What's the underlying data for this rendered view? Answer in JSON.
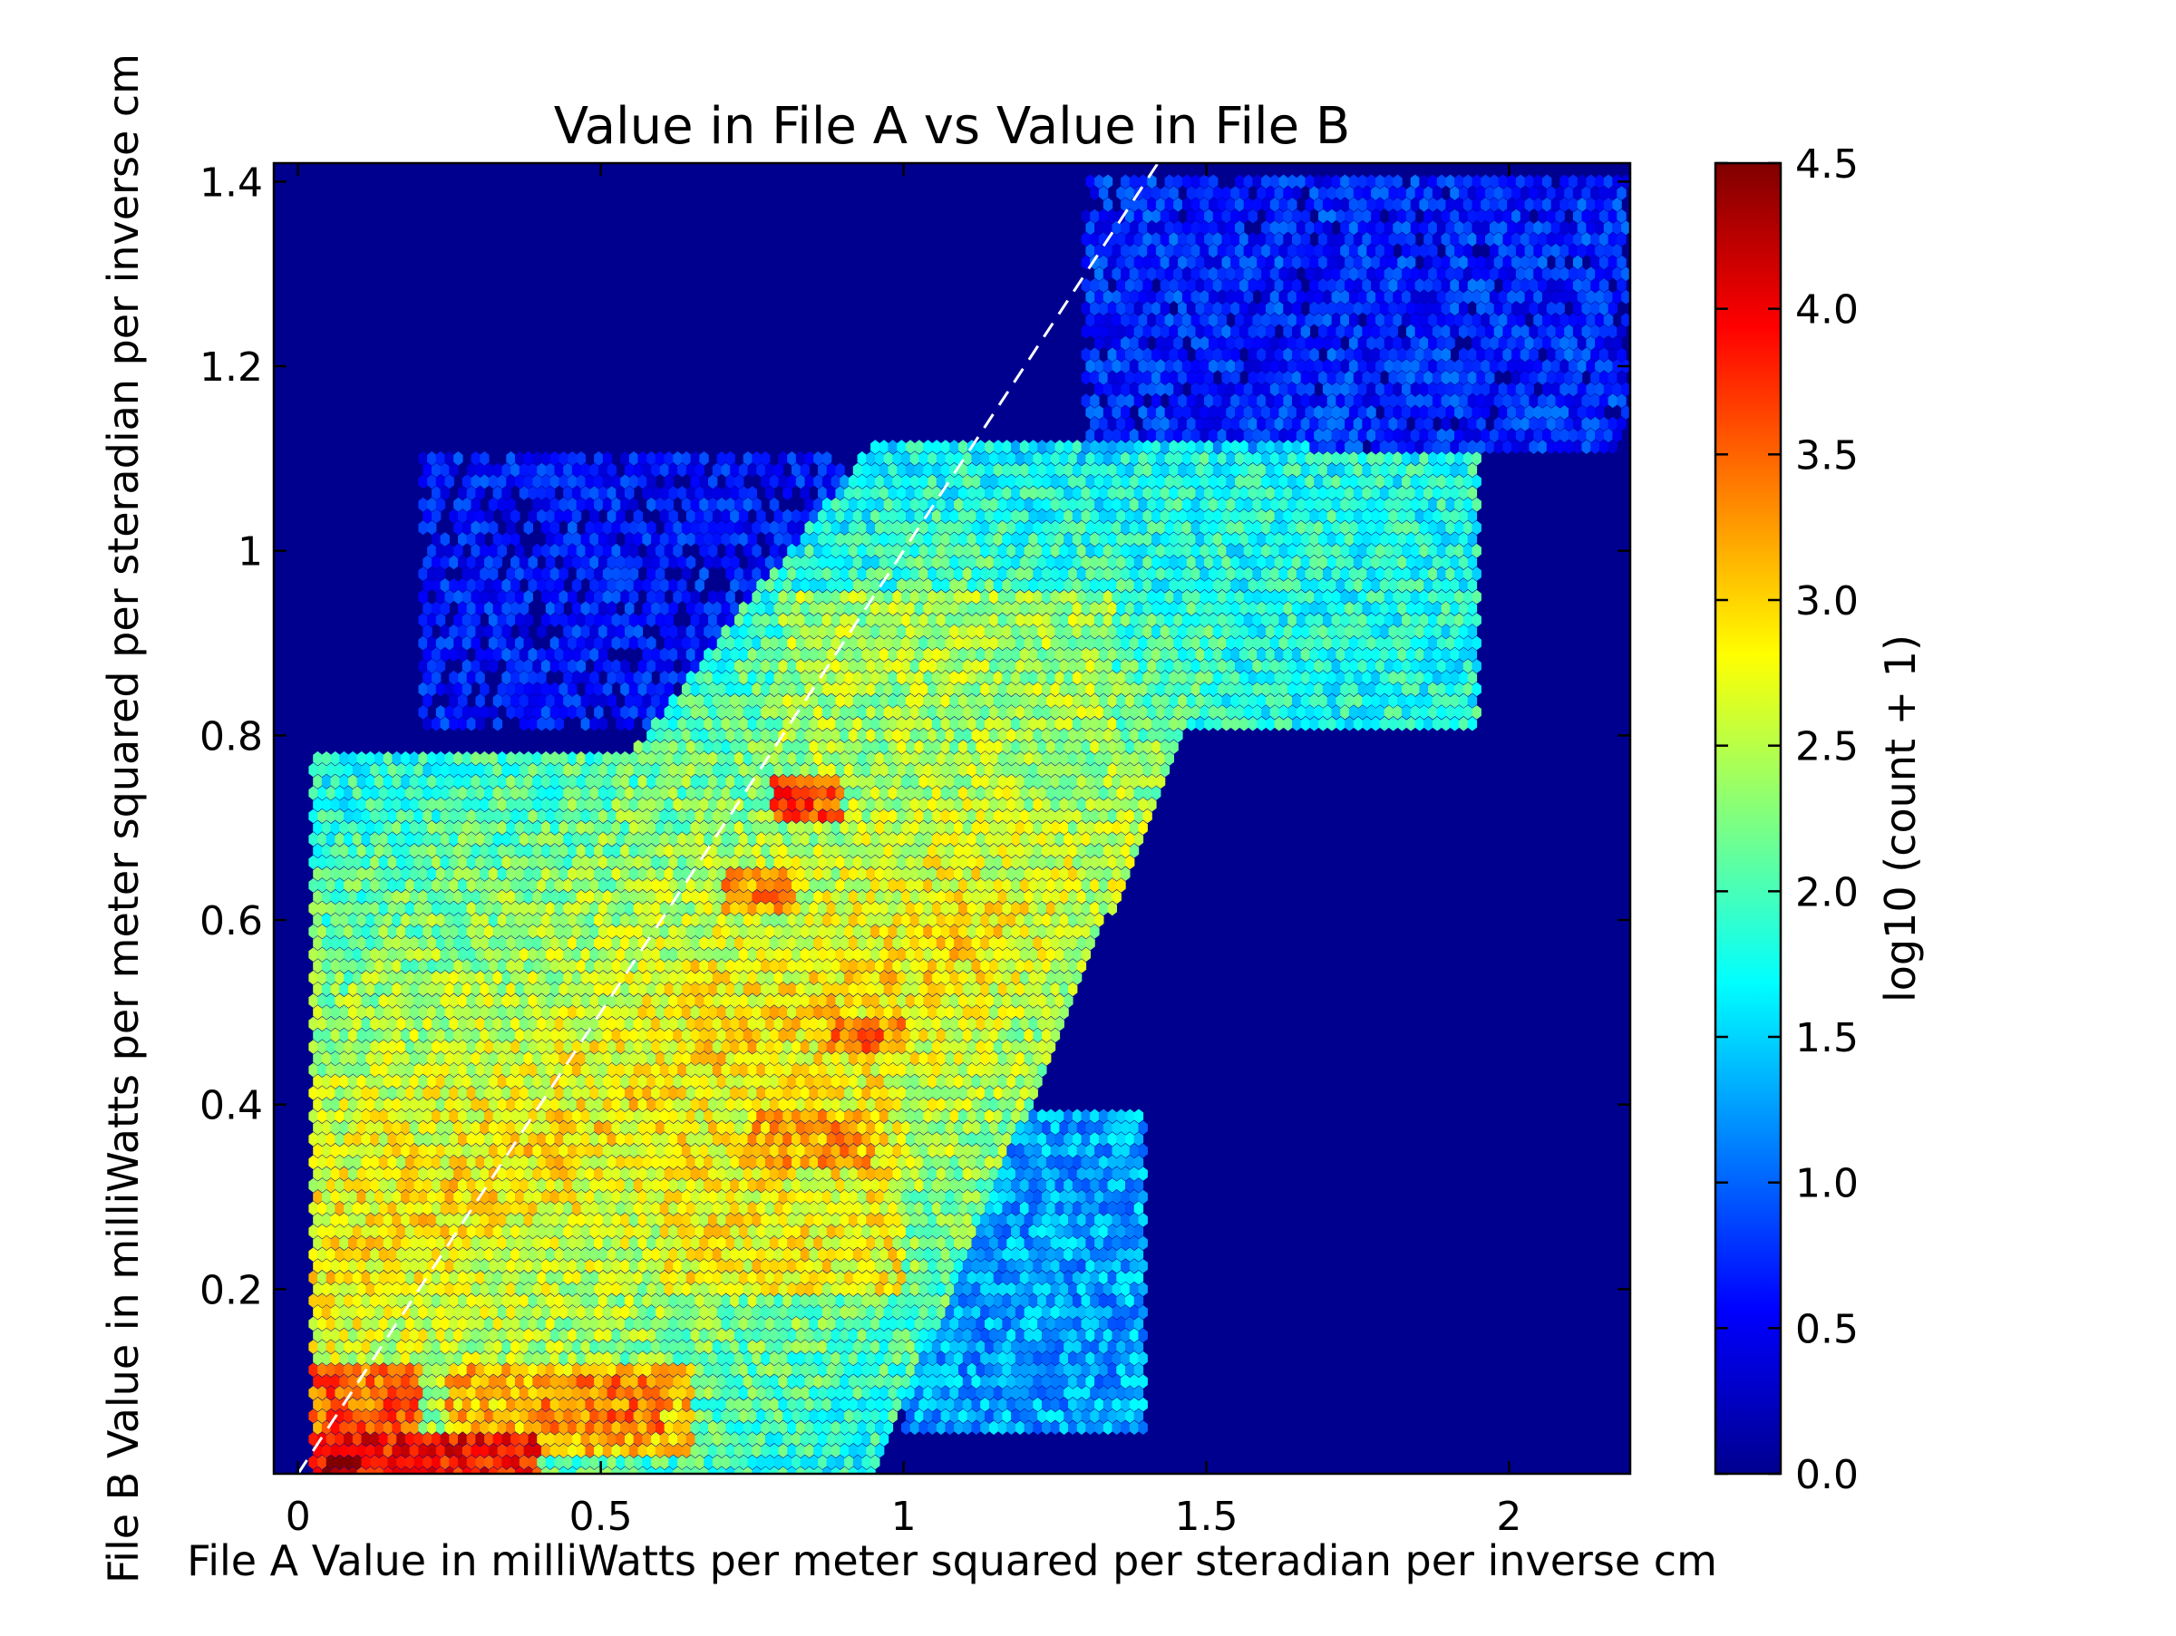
{
  "chart_data": {
    "type": "heatmap",
    "subtype": "hexbin",
    "title": "Value in File A vs Value in File B",
    "xlabel": "File A Value in milliWatts per meter squared per steradian per inverse cm",
    "ylabel": "File B Value in milliWatts per meter squared per steradian per inverse cm",
    "xlim": [
      -0.04,
      2.2
    ],
    "ylim": [
      0.0,
      1.42
    ],
    "x_ticks": [
      0,
      0.5,
      1,
      1.5,
      2
    ],
    "x_tick_labels": [
      "0",
      "0.5",
      "1",
      "1.5",
      "2"
    ],
    "y_ticks": [
      0.2,
      0.4,
      0.6,
      0.8,
      1.0,
      1.2,
      1.4
    ],
    "y_tick_labels": [
      "0.2",
      "0.4",
      "0.6",
      "0.8",
      "1",
      "1.2",
      "1.4"
    ],
    "background_color": "#00008f",
    "colormap": "jet",
    "colorbar": {
      "label": "log10 (count + 1)",
      "range": [
        0.0,
        4.5
      ],
      "ticks": [
        0.0,
        0.5,
        1.0,
        1.5,
        2.0,
        2.5,
        3.0,
        3.5,
        4.0,
        4.5
      ],
      "tick_labels": [
        "0.0",
        "0.5",
        "1.0",
        "1.5",
        "2.0",
        "2.5",
        "3.0",
        "3.5",
        "4.0",
        "4.5"
      ]
    },
    "reference_line": {
      "style": "dashed",
      "color": "#ffffff",
      "x": [
        0.0,
        1.42
      ],
      "y": [
        0.0,
        1.42
      ]
    },
    "density_regions": [
      {
        "x": [
          0.04,
          0.1
        ],
        "y": [
          0.0,
          0.02
        ],
        "value": 4.5
      },
      {
        "x": [
          0.02,
          0.4
        ],
        "y": [
          0.0,
          0.04
        ],
        "value": 3.9
      },
      {
        "x": [
          0.02,
          0.2
        ],
        "y": [
          0.03,
          0.12
        ],
        "value": 3.5
      },
      {
        "x": [
          0.25,
          0.65
        ],
        "y": [
          0.02,
          0.12
        ],
        "value": 3.1
      },
      {
        "x": [
          0.4,
          0.6
        ],
        "y": [
          0.05,
          0.1
        ],
        "value": 3.4
      },
      {
        "x": [
          0.78,
          0.9
        ],
        "y": [
          0.7,
          0.75
        ],
        "value": 3.6
      },
      {
        "x": [
          0.7,
          0.82
        ],
        "y": [
          0.61,
          0.65
        ],
        "value": 3.3
      },
      {
        "x": [
          0.88,
          1.0
        ],
        "y": [
          0.46,
          0.5
        ],
        "value": 3.4
      },
      {
        "x": [
          0.75,
          0.95
        ],
        "y": [
          0.33,
          0.4
        ],
        "value": 3.2
      },
      {
        "x": [
          0.6,
          1.0
        ],
        "y": [
          0.2,
          0.55
        ],
        "value": 2.8
      },
      {
        "x": [
          0.8,
          1.35
        ],
        "y": [
          0.7,
          0.95
        ],
        "value": 2.4
      },
      {
        "x": [
          1.35,
          1.95
        ],
        "y": [
          0.8,
          1.1
        ],
        "value": 1.8
      },
      {
        "x": [
          0.02,
          0.3
        ],
        "y": [
          0.55,
          0.7
        ],
        "value": 1.4
      },
      {
        "x": [
          1.0,
          1.4
        ],
        "y": [
          0.05,
          0.4
        ],
        "value": 1.3
      },
      {
        "x": [
          1.3,
          2.2
        ],
        "y": [
          1.1,
          1.4
        ],
        "value": 0.7
      },
      {
        "x": [
          0.2,
          0.9
        ],
        "y": [
          0.8,
          1.1
        ],
        "value": 0.6
      }
    ]
  }
}
